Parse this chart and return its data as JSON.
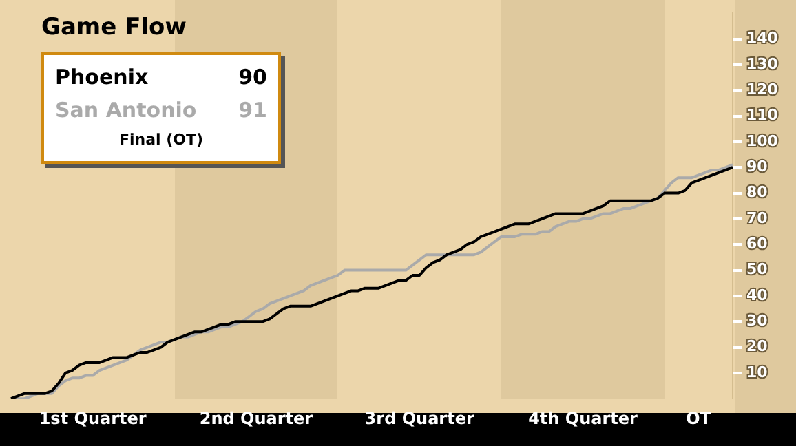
{
  "chart_data": {
    "type": "line",
    "title": "Game Flow",
    "legend": "top left",
    "grid": false,
    "marker": "none",
    "categories": [
      null,
      null,
      null,
      null,
      null,
      null,
      null,
      null,
      null,
      null,
      null,
      null,
      "1st Quarter",
      null,
      null,
      null,
      null,
      null,
      null,
      null,
      null,
      null,
      null,
      null,
      null,
      null,
      null,
      null,
      null,
      null,
      null,
      null,
      null,
      null,
      null,
      null,
      "2nd Quarter",
      null,
      null,
      null,
      null,
      null,
      null,
      null,
      null,
      null,
      null,
      null,
      null,
      null,
      null,
      null,
      null,
      null,
      null,
      null,
      null,
      null,
      null,
      null,
      "3rd Quarter",
      null,
      null,
      null,
      null,
      null,
      null,
      null,
      null,
      null,
      null,
      null,
      null,
      null,
      null,
      null,
      null,
      null,
      null,
      null,
      null,
      null,
      null,
      null,
      "4th Quarter",
      null,
      null,
      null,
      null,
      null,
      null,
      null,
      null,
      null,
      null,
      null,
      null,
      null,
      null,
      null,
      null,
      "OT",
      null,
      null,
      null,
      null,
      null
    ],
    "ylim": [
      0,
      150
    ],
    "yticks": [
      10,
      20,
      30,
      40,
      50,
      60,
      70,
      80,
      90,
      100,
      110,
      120,
      130,
      140
    ],
    "annotations": [
      "90",
      "91",
      "Final (OT)"
    ],
    "series": [
      {
        "name": "Phoenix",
        "color": "#000000",
        "values": [
          0,
          1,
          2,
          2,
          2,
          2,
          3,
          6,
          10,
          11,
          13,
          14,
          14,
          14,
          15,
          16,
          16,
          16,
          17,
          18,
          18,
          19,
          20,
          22,
          23,
          24,
          25,
          26,
          26,
          27,
          28,
          29,
          29,
          30,
          30,
          30,
          30,
          30,
          31,
          33,
          35,
          36,
          36,
          36,
          36,
          37,
          38,
          39,
          40,
          41,
          42,
          42,
          43,
          43,
          43,
          44,
          45,
          46,
          46,
          48,
          48,
          51,
          53,
          54,
          56,
          57,
          58,
          60,
          61,
          63,
          64,
          65,
          66,
          67,
          68,
          68,
          68,
          69,
          70,
          71,
          72,
          72,
          72,
          72,
          72,
          73,
          74,
          75,
          77,
          77,
          77,
          77,
          77,
          77,
          77,
          78,
          80,
          80,
          80,
          81,
          84,
          85,
          86,
          87,
          88,
          89,
          90
        ]
      },
      {
        "name": "San Antonio",
        "color": "#aaaaaa",
        "values": [
          0,
          0,
          0,
          1,
          2,
          2,
          2,
          5,
          7,
          8,
          8,
          9,
          9,
          11,
          12,
          13,
          14,
          15,
          17,
          19,
          20,
          21,
          22,
          22,
          23,
          24,
          24,
          25,
          26,
          26,
          27,
          28,
          28,
          29,
          30,
          32,
          34,
          35,
          37,
          38,
          39,
          40,
          41,
          42,
          44,
          45,
          46,
          47,
          48,
          50,
          50,
          50,
          50,
          50,
          50,
          50,
          50,
          50,
          50,
          52,
          54,
          56,
          56,
          56,
          56,
          56,
          56,
          56,
          56,
          57,
          59,
          61,
          63,
          63,
          63,
          64,
          64,
          64,
          65,
          65,
          67,
          68,
          69,
          69,
          70,
          70,
          71,
          72,
          72,
          73,
          74,
          74,
          75,
          76,
          77,
          78,
          81,
          84,
          86,
          86,
          86,
          87,
          88,
          89,
          89,
          90,
          91
        ]
      }
    ]
  }
}
